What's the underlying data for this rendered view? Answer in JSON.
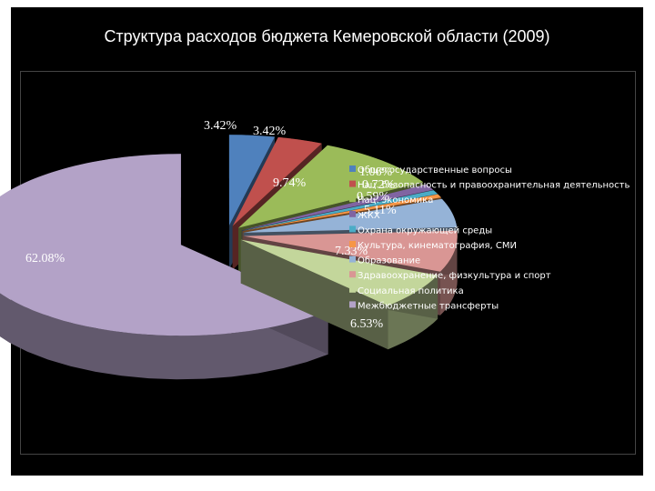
{
  "slide": {
    "title": "Структура расходов бюджета Кемеровской области (2009)"
  },
  "chart_data": {
    "type": "pie",
    "title": "Структура расходов бюджета Кемеровской области (2009)",
    "categories": [
      "Общегосударственные вопросы",
      "Нац. безопасность и правоохранительная деятельность",
      "Нац. экономика",
      "ЖКХ",
      "Охрана окружающей среды",
      "Культура, кинематография, СМИ",
      "Образование",
      "Здравоохранение, физкультура и спорт",
      "Социальная политика",
      "Межбюджетные трансферты"
    ],
    "values": [
      3.42,
      3.42,
      9.74,
      1.06,
      0.72,
      0.59,
      5.11,
      7.33,
      6.53,
      62.08
    ],
    "data_labels": [
      "3.42%",
      "3.42%",
      "9.74%",
      "1.06%",
      "0.72%",
      "0.59%",
      "5.11%",
      "7.33%",
      "6.53%",
      "62.08%"
    ],
    "colors": [
      "#4f81bd",
      "#c0504d",
      "#9bbb59",
      "#8064a2",
      "#4bacc6",
      "#f79646",
      "#95b3d7",
      "#d99694",
      "#c3d69b",
      "#b3a2c7"
    ],
    "legend_position": "right",
    "style": "3d-exploded"
  }
}
